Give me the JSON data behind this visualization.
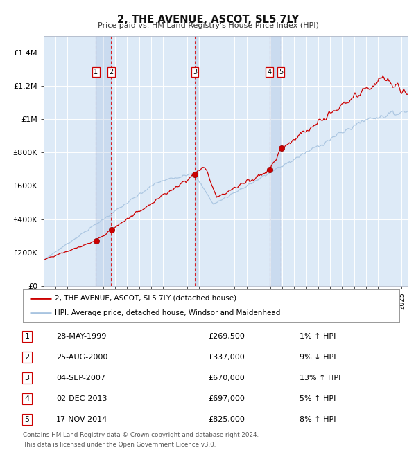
{
  "title": "2, THE AVENUE, ASCOT, SL5 7LY",
  "subtitle": "Price paid vs. HM Land Registry's House Price Index (HPI)",
  "legend_line1": "2, THE AVENUE, ASCOT, SL5 7LY (detached house)",
  "legend_line2": "HPI: Average price, detached house, Windsor and Maidenhead",
  "footer1": "Contains HM Land Registry data © Crown copyright and database right 2024.",
  "footer2": "This data is licensed under the Open Government Licence v3.0.",
  "sales": [
    {
      "num": 1,
      "date": "28-MAY-1999",
      "year": 1999.38,
      "price": 269500,
      "hpi_diff": "1% ↑ HPI"
    },
    {
      "num": 2,
      "date": "25-AUG-2000",
      "year": 2000.65,
      "price": 337000,
      "hpi_diff": "9% ↓ HPI"
    },
    {
      "num": 3,
      "date": "04-SEP-2007",
      "year": 2007.67,
      "price": 670000,
      "hpi_diff": "13% ↑ HPI"
    },
    {
      "num": 4,
      "date": "02-DEC-2013",
      "year": 2013.92,
      "price": 697000,
      "hpi_diff": "5% ↑ HPI"
    },
    {
      "num": 5,
      "date": "17-NOV-2014",
      "year": 2014.88,
      "price": 825000,
      "hpi_diff": "8% ↑ HPI"
    }
  ],
  "hpi_color": "#a8c4e0",
  "price_color": "#cc0000",
  "sale_dot_color": "#cc0000",
  "vline_color": "#dd0000",
  "bg_color": "#ddeaf7",
  "grid_color": "#ffffff",
  "label_box_edge": "#cc0000",
  "ylim": [
    0,
    1500000
  ],
  "xlim_start": 1995.0,
  "xlim_end": 2025.5,
  "yticks": [
    0,
    200000,
    400000,
    600000,
    800000,
    1000000,
    1200000,
    1400000
  ],
  "ylabels": [
    "£0",
    "£200K",
    "£400K",
    "£600K",
    "£800K",
    "£1M",
    "£1.2M",
    "£1.4M"
  ]
}
